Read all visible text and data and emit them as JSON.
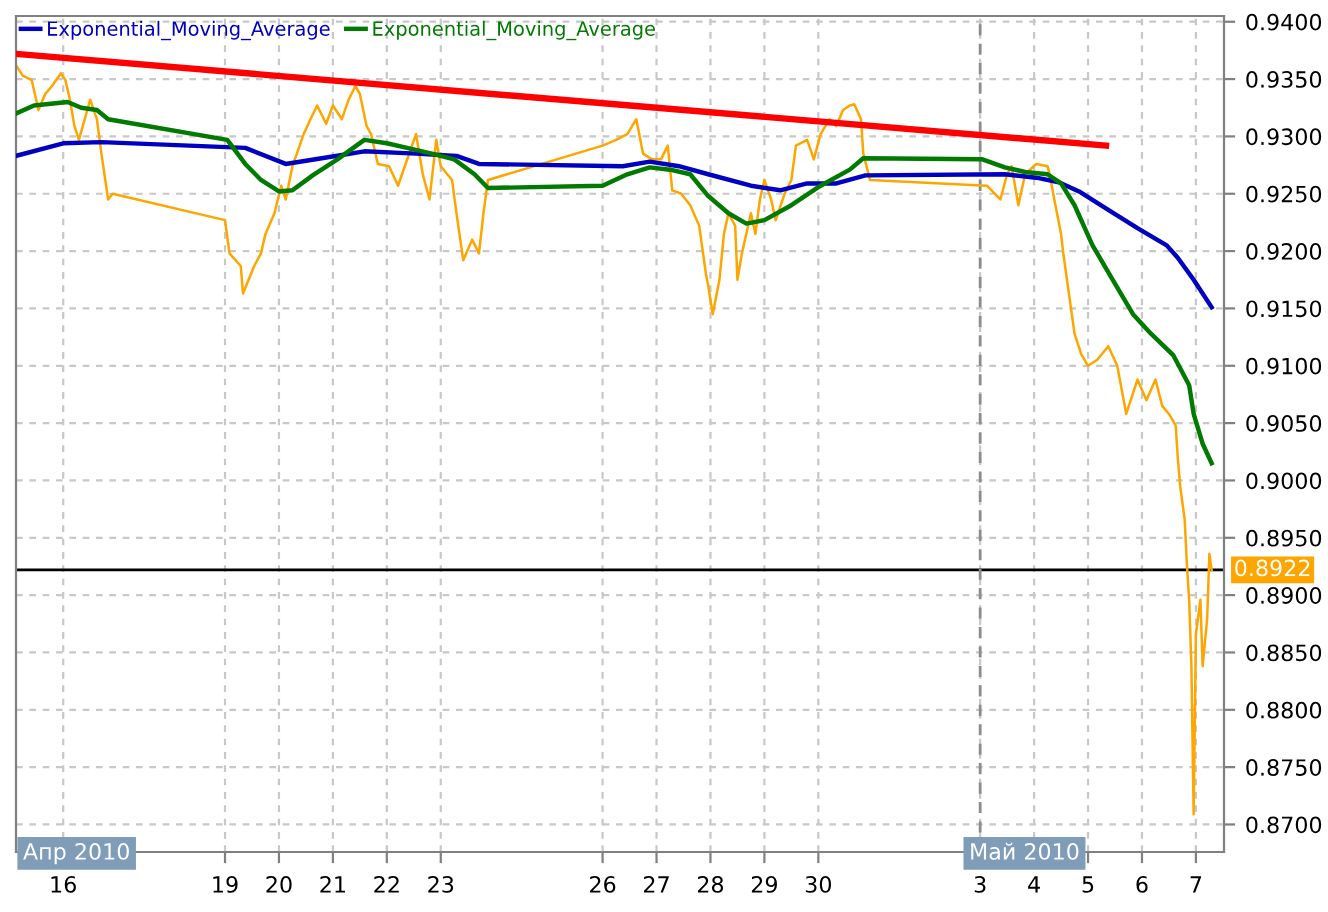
{
  "chart_data": {
    "type": "line",
    "xlim": [
      "2010-04-15T03:00",
      "2010-05-07T12:30"
    ],
    "ylim": [
      0.8676,
      0.9405
    ],
    "xticks": [
      {
        "value": "2010-04-16",
        "label": "16"
      },
      {
        "value": "2010-04-19",
        "label": "19"
      },
      {
        "value": "2010-04-20",
        "label": "20"
      },
      {
        "value": "2010-04-21",
        "label": "21"
      },
      {
        "value": "2010-04-22",
        "label": "22"
      },
      {
        "value": "2010-04-23",
        "label": "23"
      },
      {
        "value": "2010-04-26",
        "label": "26"
      },
      {
        "value": "2010-04-27",
        "label": "27"
      },
      {
        "value": "2010-04-28",
        "label": "28"
      },
      {
        "value": "2010-04-29",
        "label": "29"
      },
      {
        "value": "2010-04-30",
        "label": "30"
      },
      {
        "value": "2010-05-03",
        "label": "3"
      },
      {
        "value": "2010-05-04",
        "label": "4"
      },
      {
        "value": "2010-05-05",
        "label": "5"
      },
      {
        "value": "2010-05-06",
        "label": "6"
      },
      {
        "value": "2010-05-07",
        "label": "7"
      }
    ],
    "yticks": [
      {
        "value": 0.87,
        "label": "0.8700"
      },
      {
        "value": 0.875,
        "label": "0.8750"
      },
      {
        "value": 0.88,
        "label": "0.8800"
      },
      {
        "value": 0.885,
        "label": "0.8850"
      },
      {
        "value": 0.89,
        "label": "0.8900"
      },
      {
        "value": 0.895,
        "label": "0.8950"
      },
      {
        "value": 0.9,
        "label": "0.9000"
      },
      {
        "value": 0.905,
        "label": "0.9050"
      },
      {
        "value": 0.91,
        "label": "0.9100"
      },
      {
        "value": 0.915,
        "label": "0.9150"
      },
      {
        "value": 0.92,
        "label": "0.9200"
      },
      {
        "value": 0.925,
        "label": "0.9250"
      },
      {
        "value": 0.93,
        "label": "0.9300"
      },
      {
        "value": 0.935,
        "label": "0.9350"
      },
      {
        "value": 0.94,
        "label": "0.9400"
      }
    ],
    "grid": true,
    "legend": "top left",
    "series": [
      {
        "color": "#ffa500",
        "x": [
          "2010-04-15T03:00",
          "2010-04-15T06:00",
          "2010-04-15T10:00",
          "2010-04-15T13:00",
          "2010-04-15T16:00",
          "2010-04-15T19:00",
          "2010-04-15T23:00",
          "2010-04-16T01:00",
          "2010-04-16T03:00",
          "2010-04-16T05:00",
          "2010-04-16T07:00",
          "2010-04-16T10:00",
          "2010-04-16T12:00",
          "2010-04-16T15:00",
          "2010-04-16T17:00",
          "2010-04-16T20:00",
          "2010-04-16T22:00",
          "2010-04-19T00:00",
          "2010-04-19T02:00",
          "2010-04-19T07:00",
          "2010-04-19T08:00",
          "2010-04-19T13:00",
          "2010-04-19T16:00",
          "2010-04-19T18:00",
          "2010-04-19T22:00",
          "2010-04-20T01:00",
          "2010-04-20T03:00",
          "2010-04-20T06:00",
          "2010-04-20T11:00",
          "2010-04-20T14:00",
          "2010-04-20T17:00",
          "2010-04-20T21:00",
          "2010-04-21T00:00",
          "2010-04-21T04:00",
          "2010-04-21T07:00",
          "2010-04-21T10:00",
          "2010-04-21T12:00",
          "2010-04-21T15:00",
          "2010-04-21T17:00",
          "2010-04-21T20:00",
          "2010-04-22T01:00",
          "2010-04-22T05:00",
          "2010-04-22T08:00",
          "2010-04-22T13:00",
          "2010-04-22T16:00",
          "2010-04-22T19:00",
          "2010-04-22T22:00",
          "2010-04-23T00:00",
          "2010-04-23T05:00",
          "2010-04-23T07:00",
          "2010-04-23T10:00",
          "2010-04-23T14:00",
          "2010-04-23T17:00",
          "2010-04-23T19:00",
          "2010-04-23T21:00",
          "2010-04-26T00:00",
          "2010-04-26T06:00",
          "2010-04-26T11:00",
          "2010-04-26T15:00",
          "2010-04-26T18:00",
          "2010-04-26T22:00",
          "2010-04-27T02:00",
          "2010-04-27T05:00",
          "2010-04-27T07:00",
          "2010-04-27T11:00",
          "2010-04-27T15:00",
          "2010-04-27T19:00",
          "2010-04-27T22:00",
          "2010-04-27T23:00",
          "2010-04-28T01:00",
          "2010-04-28T04:00",
          "2010-04-28T06:00",
          "2010-04-28T08:00",
          "2010-04-28T11:00",
          "2010-04-28T12:00",
          "2010-04-28T14:00",
          "2010-04-28T18:00",
          "2010-04-28T20:00",
          "2010-04-28T22:00",
          "2010-04-29T00:00",
          "2010-04-29T03:00",
          "2010-04-29T05:00",
          "2010-04-29T09:00",
          "2010-04-29T12:00",
          "2010-04-29T14:00",
          "2010-04-29T19:00",
          "2010-04-29T22:00",
          "2010-04-30T01:00",
          "2010-04-30T05:00",
          "2010-04-30T08:00",
          "2010-04-30T11:00",
          "2010-04-30T14:00",
          "2010-04-30T16:00",
          "2010-04-30T19:00",
          "2010-04-30T20:00",
          "2010-04-30T23:00",
          "2010-05-03T03:00",
          "2010-05-03T09:00",
          "2010-05-03T12:00",
          "2010-05-03T14:00",
          "2010-05-03T17:00",
          "2010-05-03T20:00",
          "2010-05-04T01:00",
          "2010-05-04T06:00",
          "2010-05-04T07:00",
          "2010-05-04T09:00",
          "2010-05-04T12:00",
          "2010-05-04T13:00",
          "2010-05-04T15:00",
          "2010-05-04T18:00",
          "2010-05-04T21:00",
          "2010-05-05T00:00",
          "2010-05-05T04:00",
          "2010-05-05T09:00",
          "2010-05-05T13:00",
          "2010-05-05T17:00",
          "2010-05-05T22:00",
          "2010-05-06T02:00",
          "2010-05-06T06:00",
          "2010-05-06T09:00",
          "2010-05-06T12:00",
          "2010-05-06T15:00",
          "2010-05-06T16:00",
          "2010-05-06T17:00",
          "2010-05-06T19:00",
          "2010-05-06T20:00",
          "2010-05-06T21:00",
          "2010-05-06T22:00",
          "2010-05-06T23:00",
          "2010-05-07T00:00",
          "2010-05-07T02:00",
          "2010-05-07T03:00",
          "2010-05-07T05:00",
          "2010-05-07T06:00",
          "2010-05-07T07:00"
        ],
        "values": [
          0.9362,
          0.9353,
          0.9349,
          0.9323,
          0.9337,
          0.9344,
          0.9355,
          0.9349,
          0.9332,
          0.9309,
          0.9297,
          0.9318,
          0.9332,
          0.9315,
          0.9285,
          0.9245,
          0.925,
          0.9227,
          0.9198,
          0.9187,
          0.9163,
          0.9187,
          0.9198,
          0.9215,
          0.9233,
          0.9257,
          0.9245,
          0.9274,
          0.9302,
          0.9315,
          0.9327,
          0.9311,
          0.9327,
          0.9315,
          0.9332,
          0.9344,
          0.9337,
          0.9309,
          0.9302,
          0.9276,
          0.9274,
          0.9257,
          0.9274,
          0.9302,
          0.9267,
          0.9245,
          0.9297,
          0.9274,
          0.9262,
          0.9233,
          0.9192,
          0.921,
          0.9198,
          0.9233,
          0.9262,
          0.9292,
          0.9297,
          0.9302,
          0.9315,
          0.9285,
          0.928,
          0.928,
          0.9292,
          0.9253,
          0.925,
          0.924,
          0.9222,
          0.918,
          0.917,
          0.9145,
          0.9175,
          0.9215,
          0.9233,
          0.9222,
          0.9175,
          0.9198,
          0.9233,
          0.9215,
          0.9245,
          0.9262,
          0.9245,
          0.9227,
          0.925,
          0.9262,
          0.9292,
          0.9297,
          0.928,
          0.9302,
          0.9315,
          0.9309,
          0.9323,
          0.9327,
          0.9328,
          0.9315,
          0.9285,
          0.9262,
          0.9257,
          0.9245,
          0.9267,
          0.9274,
          0.924,
          0.9267,
          0.9276,
          0.9274,
          0.9266,
          0.9245,
          0.9215,
          0.9198,
          0.917,
          0.9128,
          0.911,
          0.91,
          0.9105,
          0.9117,
          0.91,
          0.9058,
          0.9088,
          0.907,
          0.9088,
          0.9065,
          0.9058,
          0.9048,
          0.9018,
          0.8995,
          0.8966,
          0.8926,
          0.8896,
          0.8838,
          0.8709,
          0.8866,
          0.8896,
          0.8838,
          0.8879,
          0.8936,
          0.8922
        ]
      },
      {
        "name": "Exponential_Moving_Average",
        "color": "#0000c0",
        "x": [
          "2010-04-15T03:00",
          "2010-04-16T00:00",
          "2010-04-16T17:00",
          "2010-04-19T09:00",
          "2010-04-20T03:00",
          "2010-04-20T19:00",
          "2010-04-21T14:00",
          "2010-04-22T13:00",
          "2010-04-23T07:00",
          "2010-04-23T17:00",
          "2010-04-26T09:00",
          "2010-04-26T21:00",
          "2010-04-27T10:00",
          "2010-04-27T23:00",
          "2010-04-28T18:00",
          "2010-04-29T07:00",
          "2010-04-29T19:00",
          "2010-04-30T08:00",
          "2010-04-30T21:00",
          "2010-05-03T11:00",
          "2010-05-04T01:00",
          "2010-05-04T11:00",
          "2010-05-04T20:00",
          "2010-05-05T09:00",
          "2010-05-05T22:00",
          "2010-05-06T11:00",
          "2010-05-06T16:00",
          "2010-05-06T23:00",
          "2010-05-07T07:00"
        ],
        "values": [
          0.9283,
          0.9294,
          0.9295,
          0.929,
          0.9276,
          0.9281,
          0.9287,
          0.9285,
          0.9283,
          0.9276,
          0.9274,
          0.9278,
          0.9274,
          0.9267,
          0.9257,
          0.9253,
          0.9259,
          0.9259,
          0.9266,
          0.9267,
          0.9264,
          0.926,
          0.9252,
          0.9236,
          0.922,
          0.9205,
          0.9194,
          0.9175,
          0.9151
        ]
      },
      {
        "name": "Exponential_Moving_Average",
        "color": "#007a00",
        "x": [
          "2010-04-15T03:00",
          "2010-04-15T11:00",
          "2010-04-16T02:00",
          "2010-04-16T08:00",
          "2010-04-16T15:00",
          "2010-04-16T20:00",
          "2010-04-19T01:00",
          "2010-04-19T09:00",
          "2010-04-19T16:00",
          "2010-04-20T00:00",
          "2010-04-20T06:00",
          "2010-04-20T15:00",
          "2010-04-21T02:00",
          "2010-04-21T14:00",
          "2010-04-22T00:00",
          "2010-04-22T09:00",
          "2010-04-22T20:00",
          "2010-04-23T06:00",
          "2010-04-23T15:00",
          "2010-04-23T21:00",
          "2010-04-26T00:00",
          "2010-04-26T11:00",
          "2010-04-26T21:00",
          "2010-04-27T06:00",
          "2010-04-27T15:00",
          "2010-04-27T23:00",
          "2010-04-28T08:00",
          "2010-04-28T16:00",
          "2010-04-29T00:00",
          "2010-04-29T12:00",
          "2010-04-30T01:00",
          "2010-04-30T14:00",
          "2010-04-30T20:00",
          "2010-05-03T01:00",
          "2010-05-03T11:00",
          "2010-05-03T20:00",
          "2010-05-04T06:00",
          "2010-05-04T12:00",
          "2010-05-04T18:00",
          "2010-05-05T02:00",
          "2010-05-05T11:00",
          "2010-05-05T20:00",
          "2010-05-06T04:00",
          "2010-05-06T14:00",
          "2010-05-06T21:00",
          "2010-05-06T23:00",
          "2010-05-07T03:00",
          "2010-05-07T07:00"
        ],
        "values": [
          0.932,
          0.9327,
          0.933,
          0.9325,
          0.9323,
          0.9315,
          0.9297,
          0.9276,
          0.9262,
          0.9252,
          0.9253,
          0.9266,
          0.928,
          0.9297,
          0.9294,
          0.929,
          0.9285,
          0.928,
          0.9267,
          0.9255,
          0.9257,
          0.9267,
          0.9273,
          0.9271,
          0.9267,
          0.9248,
          0.9233,
          0.9224,
          0.9227,
          0.924,
          0.9257,
          0.9271,
          0.9281,
          0.928,
          0.9273,
          0.9269,
          0.9267,
          0.9259,
          0.924,
          0.9205,
          0.9175,
          0.9145,
          0.9128,
          0.9109,
          0.9083,
          0.9058,
          0.9032,
          0.9015
        ]
      },
      {
        "color": "#ff0000",
        "x": [
          "2010-04-15T03:00",
          "2010-05-05T08:00"
        ],
        "values": [
          0.9372,
          0.9292
        ]
      }
    ],
    "ref_lines": [
      {
        "axis": "y",
        "value": 0.8922,
        "label": "0.8922",
        "color": "#000000"
      },
      {
        "axis": "x",
        "value": "2010-05-03",
        "label": "Май 2010",
        "color": "#8c8c8c",
        "line_style": "dashed"
      }
    ],
    "annotations": [
      "Апр 2010"
    ]
  }
}
